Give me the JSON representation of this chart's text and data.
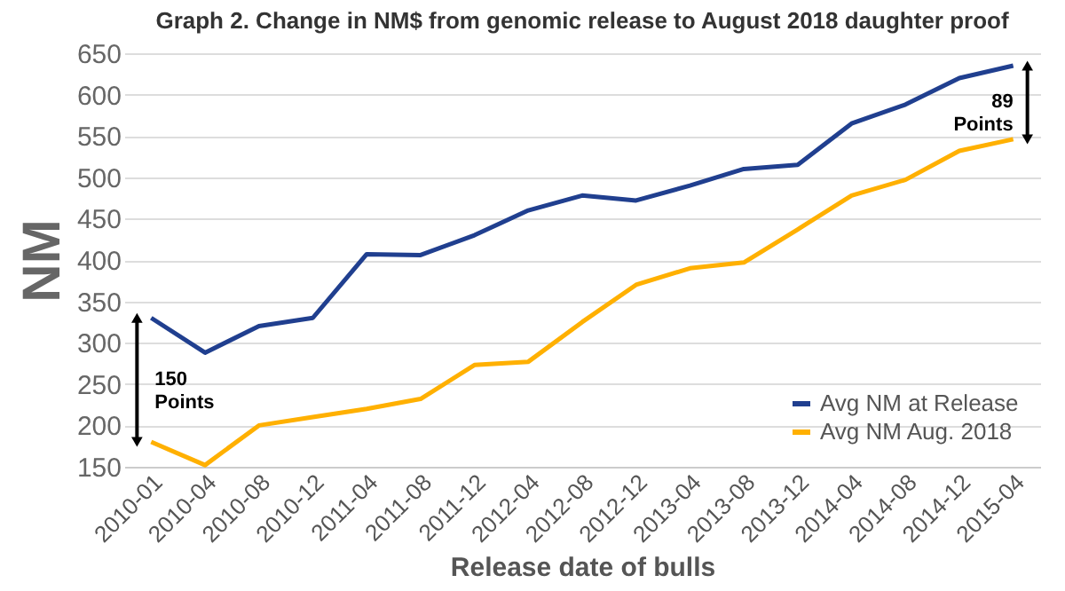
{
  "chart_data": {
    "type": "line",
    "title": "Graph 2. Change in NM$ from genomic release to August 2018 daughter proof",
    "xlabel": "Release date of bulls",
    "ylabel": "NM",
    "categories": [
      "2010-01",
      "2010-04",
      "2010-08",
      "2010-12",
      "2011-04",
      "2011-08",
      "2011-12",
      "2012-04",
      "2012-08",
      "2012-12",
      "2013-04",
      "2013-08",
      "2013-12",
      "2014-04",
      "2014-08",
      "2014-12",
      "2015-04"
    ],
    "series": [
      {
        "name": "Avg NM at Release",
        "color": "#203f8f",
        "values": [
          330,
          288,
          320,
          330,
          407,
          406,
          430,
          460,
          478,
          472,
          490,
          510,
          515,
          565,
          588,
          620,
          635
        ]
      },
      {
        "name": "Avg NM Aug. 2018",
        "color": "#ffb000",
        "values": [
          180,
          152,
          200,
          210,
          220,
          232,
          273,
          277,
          325,
          370,
          390,
          397,
          437,
          478,
          497,
          532,
          546
        ]
      }
    ],
    "ylim": [
      150,
      650
    ],
    "yticks": [
      150,
      200,
      250,
      300,
      350,
      400,
      450,
      500,
      550,
      600,
      650
    ],
    "grid": "y",
    "legend": "bottom right",
    "annotations": [
      "150 Points",
      "89 Points"
    ]
  }
}
